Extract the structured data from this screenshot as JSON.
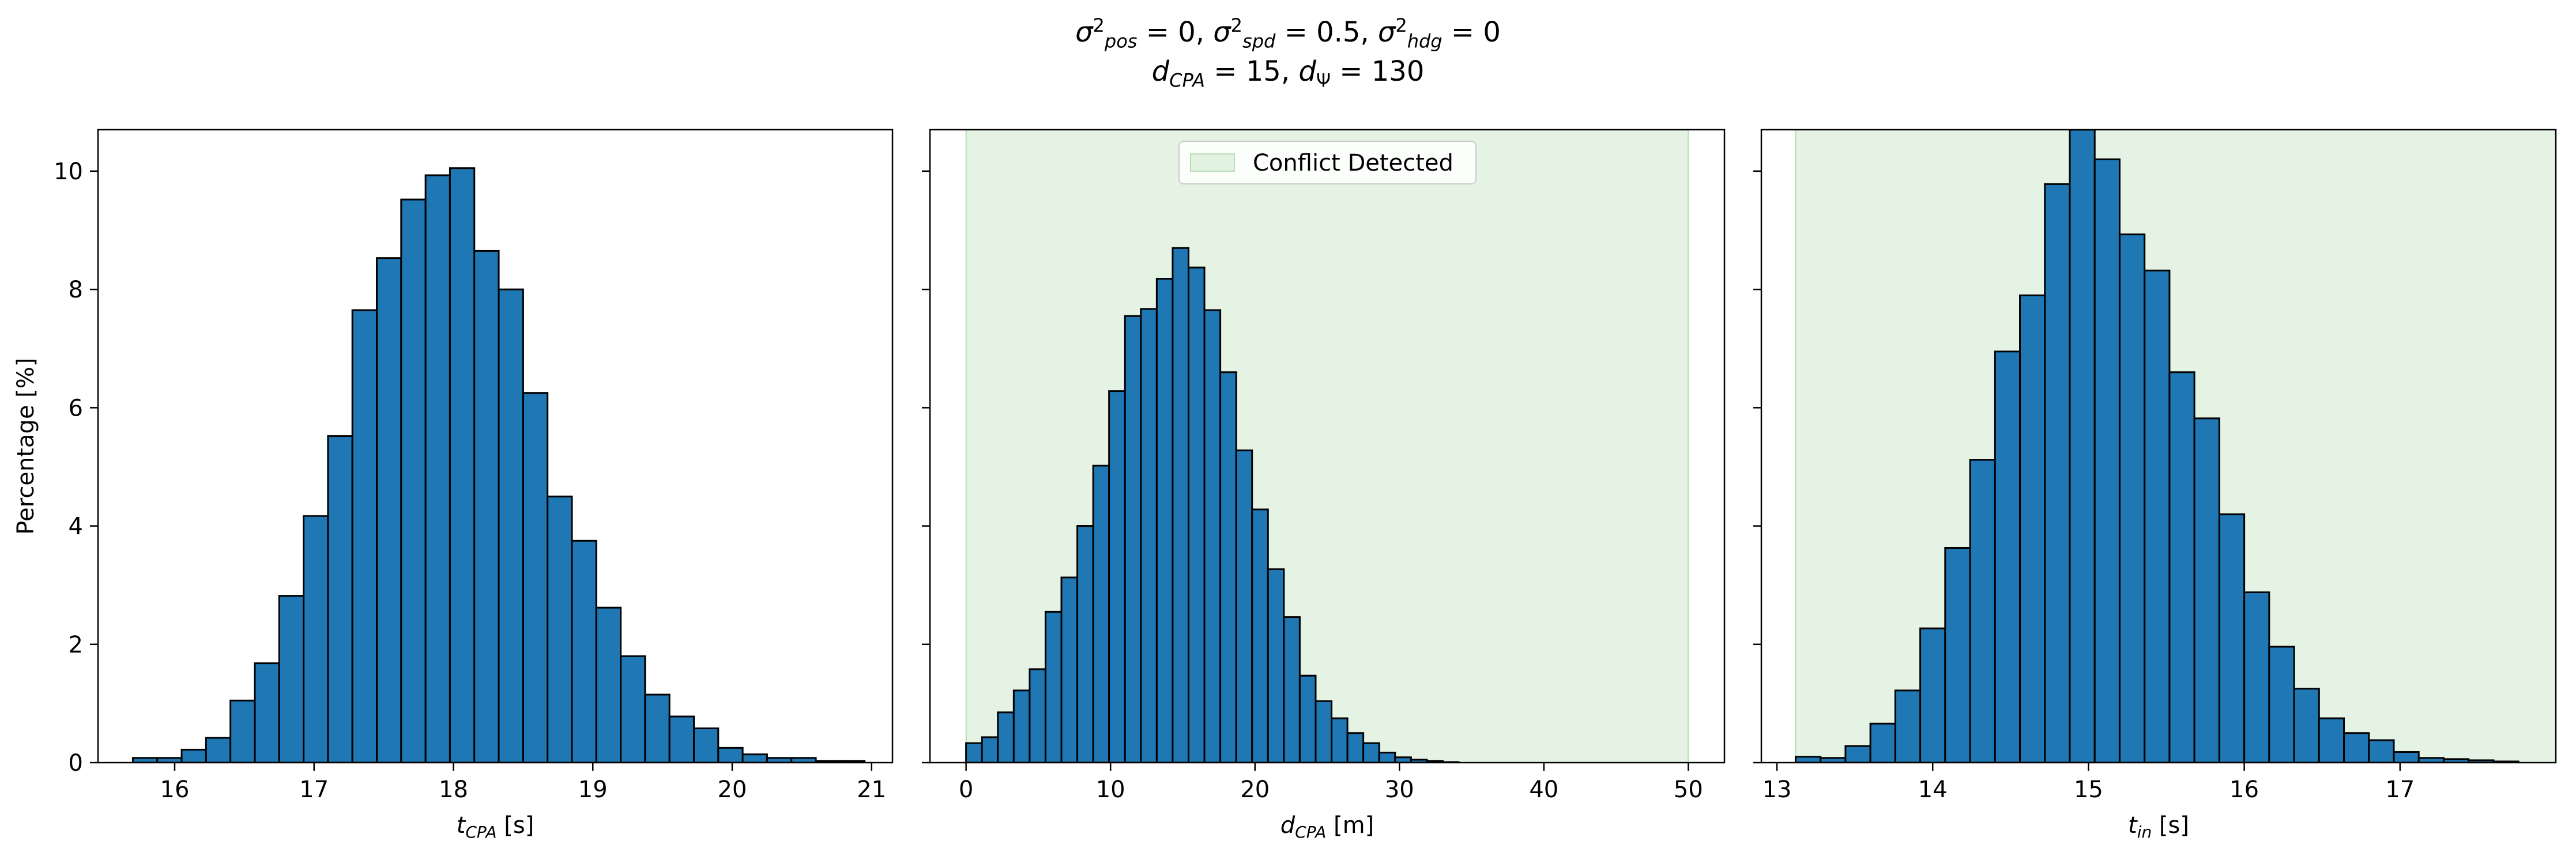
{
  "figure_title": {
    "line1": "σ²pos = 0, σ²spd = 0.5, σ²hdg = 0",
    "line2": "dCPA = 15, dΨ = 130"
  },
  "colors": {
    "bar_fill": "#1f77b4",
    "bar_edge": "#000000",
    "conflict_fill": "#2ca02c"
  },
  "chart_data": [
    {
      "type": "bar",
      "subtype": "histogram",
      "xlabel": "tCPA [s]",
      "ylabel": "Percentage [%]",
      "xlim": [
        15.45,
        21.15
      ],
      "ylim": [
        0,
        10.7
      ],
      "xticks": [
        16,
        17,
        18,
        19,
        20,
        21
      ],
      "yticks": [
        0,
        2,
        4,
        6,
        8,
        10
      ],
      "bin_edges": [
        15.7,
        15.875,
        16.05,
        16.225,
        16.4,
        16.575,
        16.75,
        16.925,
        17.1,
        17.275,
        17.45,
        17.625,
        17.8,
        17.975,
        18.15,
        18.325,
        18.5,
        18.675,
        18.85,
        19.025,
        19.2,
        19.375,
        19.55,
        19.725,
        19.9,
        20.075,
        20.25,
        20.425,
        20.6,
        20.775,
        20.95
      ],
      "values": [
        0.08,
        0.08,
        0.22,
        0.42,
        1.05,
        1.68,
        2.82,
        4.17,
        5.52,
        7.65,
        8.53,
        9.52,
        9.93,
        10.05,
        8.65,
        8.0,
        6.25,
        4.5,
        3.75,
        2.62,
        1.8,
        1.15,
        0.78,
        0.58,
        0.25,
        0.14,
        0.08,
        0.08,
        0.03,
        0.03
      ]
    },
    {
      "type": "bar",
      "subtype": "histogram",
      "xlabel": "dCPA [m]",
      "xlim": [
        -2.5,
        52.5
      ],
      "ylim": [
        0,
        10.7
      ],
      "xticks": [
        0,
        10,
        20,
        30,
        40,
        50
      ],
      "yticks": [
        0,
        2,
        4,
        6,
        8,
        10
      ],
      "conflict_region": {
        "label": "Conflict Detected",
        "from": 0,
        "to": 50
      },
      "legend_position": "upper center",
      "bin_edges": [
        0,
        1.1,
        2.2,
        3.3,
        4.4,
        5.5,
        6.6,
        7.7,
        8.8,
        9.9,
        11.0,
        12.1,
        13.2,
        14.3,
        15.4,
        16.5,
        17.6,
        18.7,
        19.8,
        20.9,
        22.0,
        23.1,
        24.2,
        25.3,
        26.4,
        27.5,
        28.6,
        29.7,
        30.8,
        31.9,
        33.0,
        34.1
      ],
      "values": [
        0.33,
        0.43,
        0.85,
        1.22,
        1.58,
        2.55,
        3.13,
        4.0,
        5.02,
        6.28,
        7.55,
        7.67,
        8.18,
        8.7,
        8.37,
        7.65,
        6.6,
        5.28,
        4.28,
        3.27,
        2.46,
        1.47,
        1.04,
        0.75,
        0.5,
        0.33,
        0.17,
        0.09,
        0.05,
        0.03,
        0.01
      ]
    },
    {
      "type": "bar",
      "subtype": "histogram",
      "xlabel": "tin [s]",
      "xlim": [
        12.9,
        18.0
      ],
      "ylim": [
        0,
        10.7
      ],
      "xticks": [
        13,
        14,
        15,
        16,
        17
      ],
      "yticks": [
        0,
        2,
        4,
        6,
        8,
        10
      ],
      "conflict_region": {
        "from": 13.12,
        "to": 18.0
      },
      "bin_edges": [
        13.12,
        13.28,
        13.44,
        13.6,
        13.76,
        13.92,
        14.08,
        14.24,
        14.4,
        14.56,
        14.72,
        14.88,
        15.04,
        15.2,
        15.36,
        15.52,
        15.68,
        15.84,
        16.0,
        16.16,
        16.32,
        16.48,
        16.64,
        16.8,
        16.96,
        17.12,
        17.28,
        17.44,
        17.6,
        17.76
      ],
      "values": [
        0.1,
        0.08,
        0.28,
        0.66,
        1.22,
        2.27,
        3.63,
        5.12,
        6.95,
        7.9,
        9.78,
        10.7,
        10.2,
        8.93,
        8.32,
        6.6,
        5.82,
        4.2,
        2.88,
        1.96,
        1.25,
        0.75,
        0.5,
        0.38,
        0.18,
        0.08,
        0.06,
        0.04,
        0.02
      ]
    }
  ]
}
